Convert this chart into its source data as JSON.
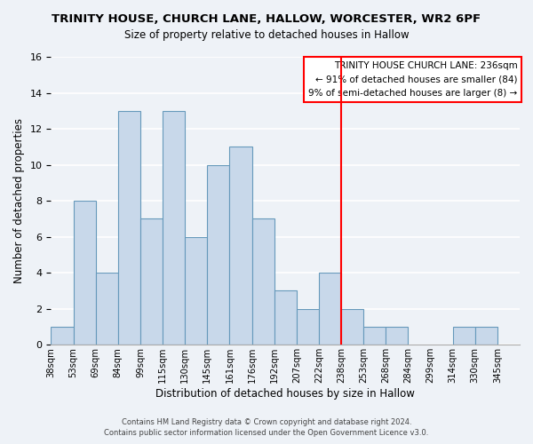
{
  "title": "TRINITY HOUSE, CHURCH LANE, HALLOW, WORCESTER, WR2 6PF",
  "subtitle": "Size of property relative to detached houses in Hallow",
  "xlabel": "Distribution of detached houses by size in Hallow",
  "ylabel": "Number of detached properties",
  "footer_line1": "Contains HM Land Registry data © Crown copyright and database right 2024.",
  "footer_line2": "Contains public sector information licensed under the Open Government Licence v3.0.",
  "bin_labels": [
    "38sqm",
    "53sqm",
    "69sqm",
    "84sqm",
    "99sqm",
    "115sqm",
    "130sqm",
    "145sqm",
    "161sqm",
    "176sqm",
    "192sqm",
    "207sqm",
    "222sqm",
    "238sqm",
    "253sqm",
    "268sqm",
    "284sqm",
    "299sqm",
    "314sqm",
    "330sqm",
    "345sqm"
  ],
  "bar_heights": [
    1,
    8,
    4,
    13,
    7,
    13,
    6,
    10,
    11,
    7,
    3,
    2,
    4,
    2,
    1,
    1,
    0,
    0,
    1,
    1
  ],
  "bar_color": "#c8d8ea",
  "bar_edge_color": "#6699bb",
  "ylim": [
    0,
    16
  ],
  "yticks": [
    0,
    2,
    4,
    6,
    8,
    10,
    12,
    14,
    16
  ],
  "ref_line_x": 13,
  "ref_line_color": "red",
  "annotation_title": "TRINITY HOUSE CHURCH LANE: 236sqm",
  "annotation_line1": "← 91% of detached houses are smaller (84)",
  "annotation_line2": "9% of semi-detached houses are larger (8) →",
  "background_color": "#eef2f7"
}
